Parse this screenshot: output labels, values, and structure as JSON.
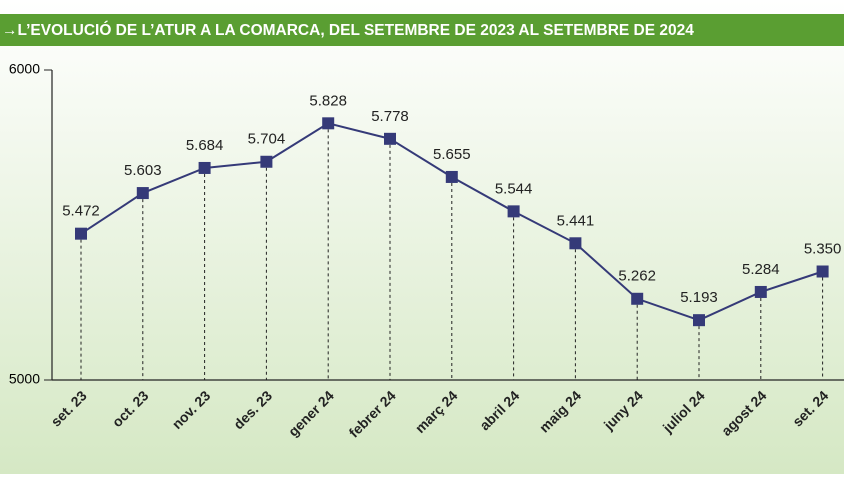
{
  "chart_data": {
    "type": "line",
    "title": "→L’EVOLUCIÓ DE L’ATUR A LA COMARCA, DEL SETEMBRE DE 2023 AL SETEMBRE DE 2024",
    "categories": [
      "set. 23",
      "oct. 23",
      "nov. 23",
      "des. 23",
      "gener 24",
      "febrer 24",
      "març 24",
      "abril 24",
      "maig 24",
      "juny 24",
      "juliol 24",
      "agost 24",
      "set. 24"
    ],
    "series": [
      {
        "color": "#353a78",
        "values": [
          5472,
          5603,
          5684,
          5704,
          5828,
          5778,
          5655,
          5544,
          5441,
          5262,
          5193,
          5284,
          5350
        ],
        "value_labels": [
          "5.472",
          "5.603",
          "5.684",
          "5.704",
          "5.828",
          "5.778",
          "5.655",
          "5.544",
          "5.441",
          "5.262",
          "5.193",
          "5.284",
          "5.350"
        ]
      }
    ],
    "ylim": [
      5000,
      6000
    ],
    "yticks": [
      5000,
      6000
    ]
  }
}
